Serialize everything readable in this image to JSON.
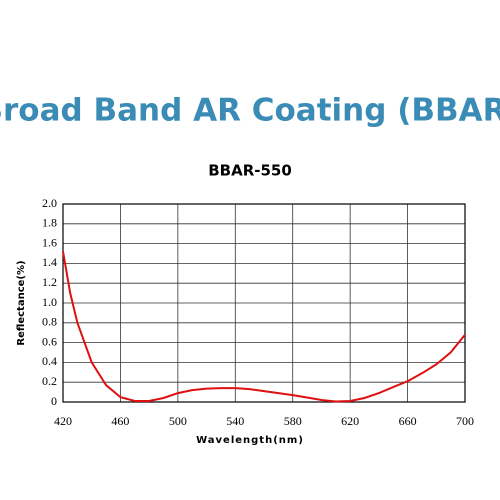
{
  "chart_data": {
    "type": "line",
    "title": "Broad  Band AR Coating (BBAR)",
    "subtitle": "BBAR-550",
    "x_label": "Wavelength(nm)",
    "y_label": "Reflectance(%)",
    "x": [
      420,
      425,
      430,
      440,
      450,
      460,
      470,
      480,
      490,
      500,
      510,
      520,
      530,
      540,
      550,
      560,
      570,
      580,
      590,
      600,
      610,
      620,
      630,
      640,
      650,
      660,
      670,
      680,
      690,
      700
    ],
    "series": [
      {
        "name": "BBAR-550",
        "color": "#e01010",
        "values": [
          1.52,
          1.1,
          0.8,
          0.4,
          0.17,
          0.05,
          0.01,
          0.01,
          0.04,
          0.09,
          0.12,
          0.135,
          0.14,
          0.14,
          0.13,
          0.11,
          0.09,
          0.07,
          0.045,
          0.02,
          0.005,
          0.01,
          0.04,
          0.09,
          0.15,
          0.21,
          0.29,
          0.38,
          0.5,
          0.68
        ]
      }
    ],
    "xlim": [
      420,
      700
    ],
    "xticks": [
      420,
      460,
      500,
      540,
      580,
      620,
      660,
      700
    ],
    "ylim": [
      0,
      2
    ],
    "yticks": [
      0,
      0.2,
      0.4,
      0.6,
      0.8,
      {
        "value": 1,
        "label": "1.0"
      },
      1.2,
      1.4,
      1.6,
      1.8,
      {
        "value": 2,
        "label": "2.0"
      }
    ],
    "grid": true
  }
}
